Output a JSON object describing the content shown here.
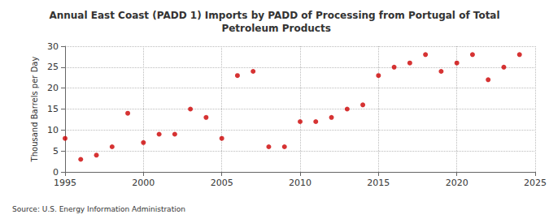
{
  "chart_data": {
    "type": "scatter",
    "title": "Annual East Coast (PADD 1) Imports by PADD of Processing from Portugal of Total Petroleum Products",
    "y_label": "Thousand Barrels per Day",
    "source": "Source: U.S. Energy Information Administration",
    "x": [
      1995,
      1996,
      1997,
      1998,
      1999,
      2000,
      2001,
      2002,
      2003,
      2004,
      2005,
      2006,
      2007,
      2008,
      2009,
      2010,
      2011,
      2012,
      2013,
      2014,
      2015,
      2016,
      2017,
      2018,
      2019,
      2020,
      2021,
      2022,
      2023,
      2024
    ],
    "values": [
      8,
      3,
      4,
      6,
      14,
      7,
      9,
      9,
      15,
      13,
      8,
      23,
      24,
      6,
      6,
      12,
      12,
      13,
      15,
      16,
      23,
      25,
      26,
      28,
      24,
      26,
      28,
      22,
      25,
      28
    ],
    "color": "#cc0000",
    "marker": "circle",
    "xlim": [
      1995,
      2025
    ],
    "xticks": [
      1995,
      2000,
      2005,
      2010,
      2015,
      2020,
      2025
    ],
    "ylim": [
      0,
      30
    ],
    "yticks": [
      0,
      5,
      10,
      15,
      20,
      25,
      30
    ],
    "grid": true
  }
}
